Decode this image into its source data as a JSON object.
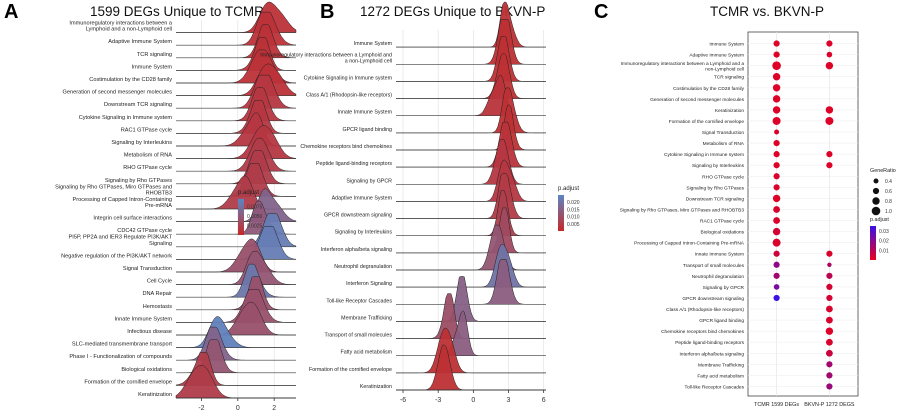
{
  "panels": {
    "A": {
      "letter": "A",
      "title": "1599 DEGs Unique to TCMR"
    },
    "B": {
      "letter": "B",
      "title": "1272 DEGs Unique to BKVN-P"
    },
    "C": {
      "letter": "C",
      "title": "TCMR vs. BKVN-P"
    }
  },
  "chart_data": [
    {
      "type": "ridgeline",
      "panel": "A",
      "title": "1599 DEGs Unique to TCMR",
      "xlabel": "",
      "xlim": [
        -3.4,
        3.2
      ],
      "xticks": [
        -2,
        0,
        2
      ],
      "color_legend": {
        "title": "p.adjust",
        "ticks": [
          0.0075,
          0.005,
          0.0025
        ],
        "tick_labels": [
          "0.0075",
          "0.0050",
          "0.0025"
        ],
        "low_color": "#c62828",
        "high_color": "#5b86c4"
      },
      "pathways": [
        {
          "name": "Immunoregulatory interactions between a Lymphoid and a non-Lymphoid cell",
          "center": 1.6,
          "p_adjust": 0.001
        },
        {
          "name": "Adaptive Immune System",
          "center": 1.4,
          "p_adjust": 0.001
        },
        {
          "name": "TCR signaling",
          "center": 1.5,
          "p_adjust": 0.001
        },
        {
          "name": "Immune System",
          "center": 1.4,
          "p_adjust": 0.001
        },
        {
          "name": "Costimulation by the CD28 family",
          "center": 1.5,
          "p_adjust": 0.001
        },
        {
          "name": "Generation of second messenger molecules",
          "center": 1.5,
          "p_adjust": 0.001
        },
        {
          "name": "Downstream TCR signaling",
          "center": 1.3,
          "p_adjust": 0.0015
        },
        {
          "name": "Cytokine Signaling in Immune system",
          "center": 1.2,
          "p_adjust": 0.0015
        },
        {
          "name": "RAC1 GTPase cycle",
          "center": 1.2,
          "p_adjust": 0.0015
        },
        {
          "name": "Signaling by Interleukins",
          "center": 1.1,
          "p_adjust": 0.0015
        },
        {
          "name": "Metabolism of RNA",
          "center": 1.2,
          "p_adjust": 0.0015
        },
        {
          "name": "RHO GTPase cycle",
          "center": 1.1,
          "p_adjust": 0.002
        },
        {
          "name": "Signaling by Rho GTPases",
          "center": 1.1,
          "p_adjust": 0.002
        },
        {
          "name": "Signaling by Rho GTPases, Miro GTPases and RHOBTB3",
          "center": 1.0,
          "p_adjust": 0.002
        },
        {
          "name": "Processing of Capped Intron-Containing Pre-mRNA",
          "center": 0.5,
          "p_adjust": 0.002
        },
        {
          "name": "Integrin cell surface interactions",
          "center": 1.4,
          "p_adjust": 0.006
        },
        {
          "name": "CDC42 GTPase cycle",
          "center": 1.1,
          "p_adjust": 0.005
        },
        {
          "name": "PI5P, PP2A and IER3 Regulate PI3K/AKT Signaling",
          "center": 1.9,
          "p_adjust": 0.0085
        },
        {
          "name": "Negative regulation of the PI3K/AKT network",
          "center": 1.8,
          "p_adjust": 0.0085
        },
        {
          "name": "Signal Transduction",
          "center": 0.9,
          "p_adjust": 0.004
        },
        {
          "name": "Cell Cycle",
          "center": 0.8,
          "p_adjust": 0.0045
        },
        {
          "name": "DNA Repair",
          "center": 0.7,
          "p_adjust": 0.008
        },
        {
          "name": "Hemostasis",
          "center": 1.0,
          "p_adjust": 0.004
        },
        {
          "name": "Innate Immune System",
          "center": 1.0,
          "p_adjust": 0.004
        },
        {
          "name": "Infectious disease",
          "center": 0.9,
          "p_adjust": 0.004
        },
        {
          "name": "SLC-mediated transmembrane transport",
          "center": -1.2,
          "p_adjust": 0.009
        },
        {
          "name": "Phase I - Functionalization of compounds",
          "center": -1.4,
          "p_adjust": 0.006
        },
        {
          "name": "Biological oxidations",
          "center": -1.3,
          "p_adjust": 0.0045
        },
        {
          "name": "Formation of the cornified envelope",
          "center": -1.8,
          "p_adjust": 0.002
        },
        {
          "name": "Keratinization",
          "center": -1.8,
          "p_adjust": 0.002
        }
      ]
    },
    {
      "type": "ridgeline",
      "panel": "B",
      "title": "1272 DEGs Unique to BKVN-P",
      "xlabel": "",
      "xlim": [
        -6.6,
        6.2
      ],
      "xticks": [
        -6,
        -3,
        0,
        3,
        6
      ],
      "color_legend": {
        "title": "p.adjust",
        "ticks": [
          0.02,
          0.015,
          0.01,
          0.005
        ],
        "tick_labels": [
          "0.020",
          "0.015",
          "0.010",
          "0.005"
        ],
        "low_color": "#c62828",
        "high_color": "#5b86c4"
      },
      "pathways": [
        {
          "name": "Immune System",
          "center": 2.6,
          "p_adjust": 0.002
        },
        {
          "name": "Immunoregulatory interactions between a Lymphoid and a non-Lymphoid cell",
          "center": 2.6,
          "p_adjust": 0.002
        },
        {
          "name": "Cytokine Signaling in Immune system",
          "center": 2.6,
          "p_adjust": 0.002
        },
        {
          "name": "Class A/1 (Rhodopsin-like receptors)",
          "center": 2.7,
          "p_adjust": 0.002
        },
        {
          "name": "Innate Immune System",
          "center": 2.4,
          "p_adjust": 0.003
        },
        {
          "name": "GPCR ligand binding",
          "center": 2.8,
          "p_adjust": 0.002
        },
        {
          "name": "Chemokine receptors bind chemokines",
          "center": 3.0,
          "p_adjust": 0.002
        },
        {
          "name": "Peptide ligand-binding receptors",
          "center": 2.8,
          "p_adjust": 0.003
        },
        {
          "name": "Signaling by GPCR",
          "center": 2.6,
          "p_adjust": 0.004
        },
        {
          "name": "Adaptive Immune System",
          "center": 2.5,
          "p_adjust": 0.004
        },
        {
          "name": "GPCR downstream signaling",
          "center": 2.5,
          "p_adjust": 0.005
        },
        {
          "name": "Signaling by Interleukins",
          "center": 2.5,
          "p_adjust": 0.006
        },
        {
          "name": "Interferon alpha/beta signaling",
          "center": 2.7,
          "p_adjust": 0.009
        },
        {
          "name": "Neutrophil degranulation",
          "center": 2.2,
          "p_adjust": 0.012
        },
        {
          "name": "Interferon Signaling",
          "center": 2.3,
          "p_adjust": 0.02
        },
        {
          "name": "Toll-like Receptor Cascades",
          "center": 2.4,
          "p_adjust": 0.014
        },
        {
          "name": "Membrane Trafficking",
          "center": -1.0,
          "p_adjust": 0.015
        },
        {
          "name": "Transport of small molecules",
          "center": -2.0,
          "p_adjust": 0.01
        },
        {
          "name": "Fatty acid metabolism",
          "center": -0.8,
          "p_adjust": 0.014
        },
        {
          "name": "Formation of the cornified envelope",
          "center": -2.6,
          "p_adjust": 0.002
        },
        {
          "name": "Keratinization",
          "center": -2.6,
          "p_adjust": 0.002
        }
      ]
    },
    {
      "type": "dot",
      "panel": "C",
      "title": "TCMR vs. BKVN-P",
      "categories": [
        "TCMR 1599 DEGs",
        "BKVN-P 1272 DEGS"
      ],
      "size_legend": {
        "title": "GeneRatio",
        "values": [
          0.4,
          0.6,
          0.8,
          1.0
        ],
        "labels": [
          "0.4",
          "0.6",
          "0.8",
          "1.0"
        ]
      },
      "color_legend": {
        "title": "p.adjust",
        "ticks": [
          0.03,
          0.02,
          0.01
        ],
        "tick_labels": [
          "0.03",
          "0.02",
          "0.01"
        ],
        "low_color": "#e8001c",
        "high_color": "#3a12e8"
      },
      "terms": [
        {
          "name": "Immune System",
          "tcmr": {
            "ratio": 0.6,
            "p": 0.002
          },
          "bkvn": {
            "ratio": 0.6,
            "p": 0.002
          }
        },
        {
          "name": "Adaptive Immune System",
          "tcmr": {
            "ratio": 0.6,
            "p": 0.002
          },
          "bkvn": {
            "ratio": 0.5,
            "p": 0.002
          }
        },
        {
          "name": "Immunoregulatory interactions between a Lymphoid and a non-Lymphoid cell",
          "tcmr": {
            "ratio": 1.0,
            "p": 0.002
          },
          "bkvn": {
            "ratio": 0.8,
            "p": 0.002
          }
        },
        {
          "name": "TCR signaling",
          "tcmr": {
            "ratio": 0.8,
            "p": 0.002
          },
          "bkvn": null
        },
        {
          "name": "Costimulation by the CD28 family",
          "tcmr": {
            "ratio": 0.8,
            "p": 0.002
          },
          "bkvn": null
        },
        {
          "name": "Generation of second messenger molecules",
          "tcmr": {
            "ratio": 0.8,
            "p": 0.002
          },
          "bkvn": null
        },
        {
          "name": "Keratinization",
          "tcmr": {
            "ratio": 0.8,
            "p": 0.002
          },
          "bkvn": {
            "ratio": 0.8,
            "p": 0.002
          }
        },
        {
          "name": "Formation of the cornified envelope",
          "tcmr": {
            "ratio": 0.9,
            "p": 0.002
          },
          "bkvn": {
            "ratio": 0.9,
            "p": 0.002
          }
        },
        {
          "name": "Signal Transduction",
          "tcmr": {
            "ratio": 0.4,
            "p": 0.003
          },
          "bkvn": null
        },
        {
          "name": "Metabolism of RNA",
          "tcmr": {
            "ratio": 0.6,
            "p": 0.002
          },
          "bkvn": null
        },
        {
          "name": "Cytokine Signaling in Immune system",
          "tcmr": {
            "ratio": 0.6,
            "p": 0.002
          },
          "bkvn": {
            "ratio": 0.6,
            "p": 0.002
          }
        },
        {
          "name": "Signaling by Interleukins",
          "tcmr": {
            "ratio": 0.6,
            "p": 0.002
          },
          "bkvn": {
            "ratio": 0.6,
            "p": 0.002
          }
        },
        {
          "name": "RHO GTPase cycle",
          "tcmr": {
            "ratio": 0.6,
            "p": 0.003
          },
          "bkvn": null
        },
        {
          "name": "Signaling by Rho GTPases",
          "tcmr": {
            "ratio": 0.6,
            "p": 0.003
          },
          "bkvn": null
        },
        {
          "name": "Downstream TCR signaling",
          "tcmr": {
            "ratio": 0.8,
            "p": 0.002
          },
          "bkvn": null
        },
        {
          "name": "Signaling by Rho GTPases, Miro GTPases and RHOBTB3",
          "tcmr": {
            "ratio": 0.7,
            "p": 0.003
          },
          "bkvn": null
        },
        {
          "name": "RAC1 GTPase cycle",
          "tcmr": {
            "ratio": 0.7,
            "p": 0.003
          },
          "bkvn": null
        },
        {
          "name": "Biological oxidations",
          "tcmr": {
            "ratio": 0.8,
            "p": 0.004
          },
          "bkvn": null
        },
        {
          "name": "Processing of Capped Intron-Containing Pre-mRNA",
          "tcmr": {
            "ratio": 0.9,
            "p": 0.003
          },
          "bkvn": null
        },
        {
          "name": "Innate Immune System",
          "tcmr": {
            "ratio": 0.6,
            "p": 0.005
          },
          "bkvn": {
            "ratio": 0.6,
            "p": 0.003
          }
        },
        {
          "name": "Transport of small molecules",
          "tcmr": {
            "ratio": 0.6,
            "p": 0.018
          },
          "bkvn": {
            "ratio": 0.3,
            "p": 0.012
          }
        },
        {
          "name": "Neutrophil degranulation",
          "tcmr": {
            "ratio": 0.6,
            "p": 0.014
          },
          "bkvn": {
            "ratio": 0.6,
            "p": 0.009
          }
        },
        {
          "name": "Signaling by GPCR",
          "tcmr": {
            "ratio": 0.5,
            "p": 0.022
          },
          "bkvn": {
            "ratio": 0.6,
            "p": 0.004
          }
        },
        {
          "name": "GPCR downstream signaling",
          "tcmr": {
            "ratio": 0.6,
            "p": 0.035
          },
          "bkvn": {
            "ratio": 0.6,
            "p": 0.004
          }
        },
        {
          "name": "Class A/1 (Rhodopsin-like receptors)",
          "tcmr": null,
          "bkvn": {
            "ratio": 0.7,
            "p": 0.003
          }
        },
        {
          "name": "GPCR ligand binding",
          "tcmr": null,
          "bkvn": {
            "ratio": 0.7,
            "p": 0.003
          }
        },
        {
          "name": "Chemokine receptors bind chemokines",
          "tcmr": null,
          "bkvn": {
            "ratio": 0.8,
            "p": 0.002
          }
        },
        {
          "name": "Peptide ligand-binding receptors",
          "tcmr": null,
          "bkvn": {
            "ratio": 0.7,
            "p": 0.003
          }
        },
        {
          "name": "Interferon alpha/beta signaling",
          "tcmr": null,
          "bkvn": {
            "ratio": 0.7,
            "p": 0.006
          }
        },
        {
          "name": "Membrane Trafficking",
          "tcmr": null,
          "bkvn": {
            "ratio": 0.6,
            "p": 0.014
          }
        },
        {
          "name": "Fatty acid metabolism",
          "tcmr": null,
          "bkvn": {
            "ratio": 0.6,
            "p": 0.014
          }
        },
        {
          "name": "Toll-like Receptor Cascades",
          "tcmr": null,
          "bkvn": {
            "ratio": 0.6,
            "p": 0.016
          }
        }
      ]
    }
  ]
}
